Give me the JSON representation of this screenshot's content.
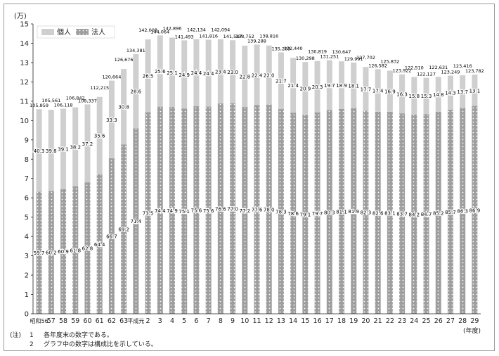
{
  "chart_data": {
    "type": "bar",
    "stacked": true,
    "unit_label": "(万)",
    "x_unit_label": "(年度)",
    "ylim": [
      0,
      15
    ],
    "yticks": [
      0,
      1,
      2,
      3,
      4,
      5,
      6,
      7,
      8,
      9,
      10,
      11,
      12,
      13,
      14,
      15
    ],
    "grid": false,
    "legend_position": "top-left",
    "categories": [
      "昭和56",
      "57",
      "58",
      "59",
      "60",
      "61",
      "62",
      "63",
      "平成元",
      "2",
      "3",
      "4",
      "5",
      "6",
      "7",
      "8",
      "9",
      "10",
      "11",
      "12",
      "13",
      "14",
      "15",
      "16",
      "17",
      "18",
      "19",
      "20",
      "21",
      "22",
      "23",
      "24",
      "25",
      "26",
      "27",
      "28",
      "29"
    ],
    "totals": [
      105859,
      105561,
      106118,
      106842,
      108337,
      112215,
      120664,
      126676,
      134381,
      142008,
      144064,
      142896,
      141493,
      142134,
      141816,
      142094,
      141547,
      138752,
      139288,
      138816,
      135283,
      132440,
      130298,
      130819,
      131251,
      130647,
      129991,
      127702,
      126582,
      125832,
      123922,
      122510,
      122127,
      122631,
      123249,
      123416,
      123782
    ],
    "total_labels": [
      "105,859",
      "105,561",
      "106,118",
      "106,842",
      "108,337",
      "112,215",
      "120,664",
      "126,676",
      "134,381",
      "142,008",
      "144,064",
      "142,896",
      "141,493",
      "142,134",
      "141,816",
      "142,094",
      "141,547",
      "138,752",
      "139,288",
      "138,816",
      "135,283",
      "132,440",
      "130,298",
      "130,819",
      "131,251",
      "130,647",
      "129,991",
      "127,702",
      "126,582",
      "125,832",
      "123,922",
      "122,510",
      "122,127",
      "122,631",
      "123,249",
      "123,416",
      "123,782"
    ],
    "series": [
      {
        "name": "法人",
        "pattern": "dots",
        "color": "#9e9e9e",
        "share_percent": [
          59.7,
          60.2,
          60.9,
          61.8,
          62.8,
          64.4,
          66.7,
          69.2,
          71.4,
          73.5,
          74.4,
          74.9,
          75.1,
          75.6,
          75.6,
          76.6,
          77.0,
          77.2,
          77.6,
          78.0,
          78.3,
          78.6,
          79.1,
          79.7,
          80.3,
          81.1,
          81.9,
          82.3,
          82.6,
          83.1,
          83.7,
          84.2,
          84.7,
          85.2,
          85.7,
          86.3,
          86.9
        ]
      },
      {
        "name": "個人",
        "pattern": "solid",
        "color": "#cfcfcf",
        "share_percent": [
          40.3,
          39.8,
          39.1,
          38.2,
          37.2,
          35.6,
          33.3,
          30.8,
          28.6,
          26.5,
          25.6,
          25.1,
          24.9,
          24.4,
          24.4,
          23.4,
          23.0,
          22.8,
          22.4,
          22.0,
          21.7,
          21.4,
          20.9,
          20.3,
          19.7,
          18.9,
          18.1,
          17.7,
          17.4,
          16.9,
          16.3,
          15.8,
          15.3,
          14.8,
          14.3,
          13.7,
          13.1
        ]
      }
    ],
    "notes": [
      {
        "tag": "(注)",
        "num": "1",
        "text": "各年度末の数字である。"
      },
      {
        "tag": "",
        "num": "2",
        "text": "グラフ中の数字は構成比を示している。"
      }
    ]
  }
}
